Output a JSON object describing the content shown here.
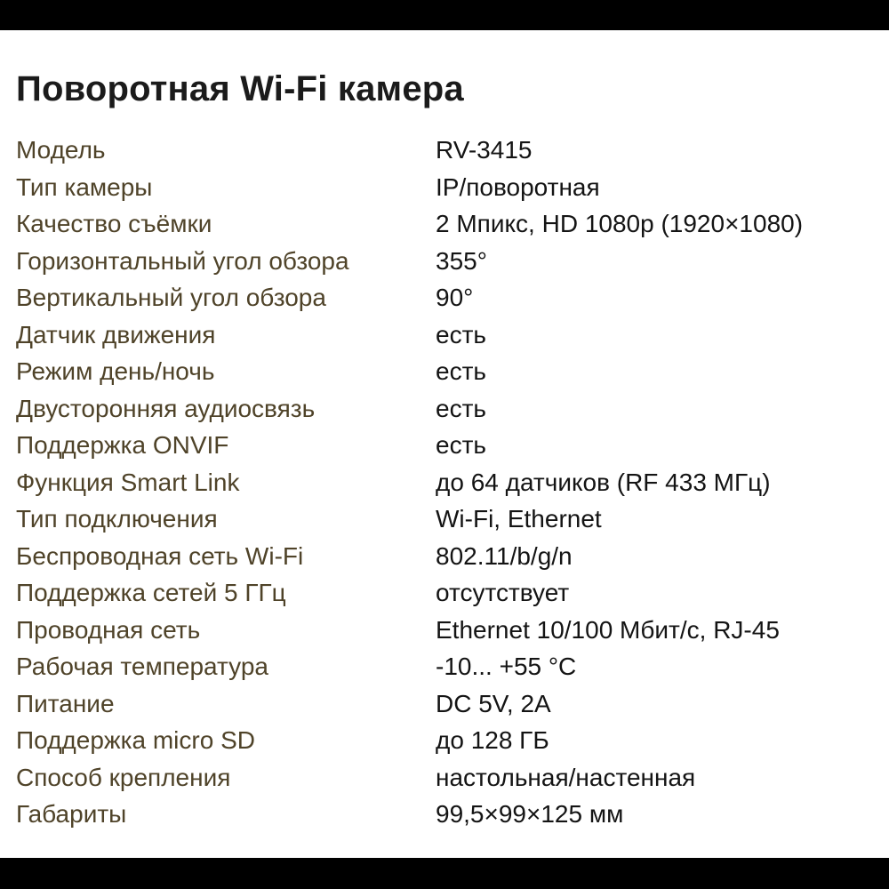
{
  "page": {
    "title": "Поворотная Wi-Fi камера"
  },
  "specs": {
    "rows": [
      {
        "label": "Модель",
        "value": "RV-3415"
      },
      {
        "label": "Тип камеры",
        "value": "IP/поворотная"
      },
      {
        "label": "Качество съёмки",
        "value": "2 Мпикс, HD 1080p (1920×1080)"
      },
      {
        "label": "Горизонтальный угол обзора",
        "value": "355°"
      },
      {
        "label": "Вертикальный угол обзора",
        "value": "90°"
      },
      {
        "label": "Датчик движения",
        "value": "есть"
      },
      {
        "label": "Режим день/ночь",
        "value": "есть"
      },
      {
        "label": "Двусторонняя аудиосвязь",
        "value": "есть"
      },
      {
        "label": "Поддержка ONVIF",
        "value": "есть"
      },
      {
        "label": "Функция Smart Link",
        "value": "до 64 датчиков (RF 433 МГц)"
      },
      {
        "label": "Тип подключения",
        "value": "Wi-Fi, Ethernet"
      },
      {
        "label": "Беспроводная сеть Wi-Fi",
        "value": "802.11/b/g/n"
      },
      {
        "label": "Поддержка сетей 5 ГГц",
        "value": "отсутствует"
      },
      {
        "label": "Проводная сеть",
        "value": "Ethernet 10/100 Мбит/с, RJ-45"
      },
      {
        "label": "Рабочая температура",
        "value": "-10... +55 °C"
      },
      {
        "label": "Питание",
        "value": "DC 5V, 2A"
      },
      {
        "label": "Поддержка micro SD",
        "value": "до 128 ГБ"
      },
      {
        "label": "Способ крепления",
        "value": "настольная/настенная"
      },
      {
        "label": "Габариты",
        "value": "99,5×99×125 мм"
      }
    ]
  },
  "colors": {
    "top_bar": "#000000",
    "bottom_bar": "#000000",
    "background": "#ffffff",
    "title_text": "#1b1b1b",
    "label_text": "#4f4329",
    "value_text": "#141414"
  }
}
